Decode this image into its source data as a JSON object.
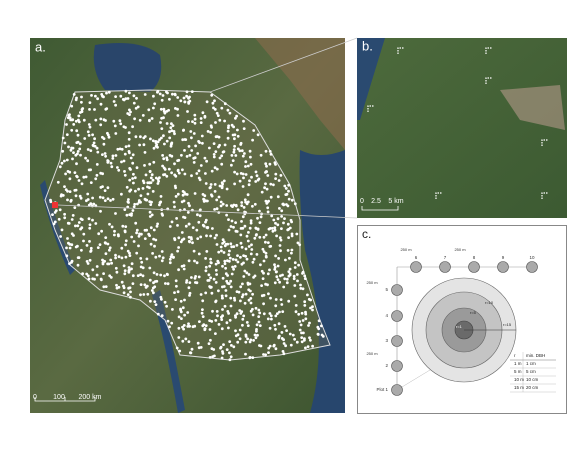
{
  "panels": {
    "a": {
      "label": "a.",
      "scale": [
        "0",
        "100",
        "200 km"
      ]
    },
    "b": {
      "label": "b.",
      "scale": [
        "0",
        "2.5",
        "5 km"
      ]
    },
    "c": {
      "label": "c.",
      "distances": [
        "250 m",
        "250 m",
        "250 m",
        "250 m"
      ],
      "plots": [
        "Plot 1",
        "2",
        "3",
        "4",
        "5",
        "6",
        "7",
        "8",
        "9",
        "10"
      ],
      "radii": [
        "r=1",
        "r=5",
        "r=10",
        "r=15"
      ],
      "table": {
        "header": [
          "r",
          "min. DBH"
        ],
        "rows": [
          [
            "1 m",
            "1 cm"
          ],
          [
            "5 m",
            "5 cm"
          ],
          [
            "10 m",
            "10 cm"
          ],
          [
            "15 m",
            "20 cm"
          ]
        ]
      }
    }
  }
}
